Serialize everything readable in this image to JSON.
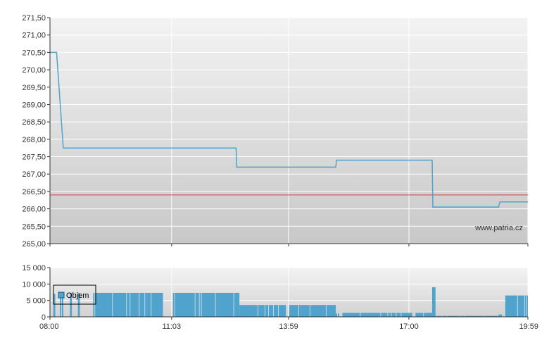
{
  "watermark": "www.patria.cz",
  "colors": {
    "price_line": "#4fa3cc",
    "reference_line": "#cc4444",
    "volume_bar": "#4fa3cc",
    "grid": "#ffffff",
    "axis": "#333333"
  },
  "chart_data": [
    {
      "type": "line",
      "title": "",
      "xlabel": "",
      "ylabel": "",
      "x_unit": "time",
      "xlim": [
        "08:00",
        "19:59"
      ],
      "ylim": [
        265.0,
        271.5
      ],
      "y_ticks": [
        "271,50",
        "271,00",
        "270,50",
        "270,00",
        "269,50",
        "269,00",
        "268,50",
        "268,00",
        "267,50",
        "267,00",
        "266,50",
        "266,00",
        "265,50",
        "265,00"
      ],
      "y_tick_values": [
        271.5,
        271.0,
        270.5,
        270.0,
        269.5,
        269.0,
        268.5,
        268.0,
        267.5,
        267.0,
        266.5,
        266.0,
        265.5,
        265.0
      ],
      "x_ticks": [
        "08:00",
        "11:03",
        "13:59",
        "17:00",
        "19:59"
      ],
      "grid": true,
      "reference_line": {
        "value": 266.4
      },
      "series": [
        {
          "points": [
            [
              "08:00",
              270.5
            ],
            [
              "08:10",
              270.5
            ],
            [
              "08:20",
              267.75
            ],
            [
              "12:40",
              267.75
            ],
            [
              "12:41",
              267.2
            ],
            [
              "15:10",
              267.2
            ],
            [
              "15:11",
              267.4
            ],
            [
              "17:35",
              267.4
            ],
            [
              "17:36",
              266.05
            ],
            [
              "19:15",
              266.05
            ],
            [
              "19:17",
              266.2
            ],
            [
              "19:59",
              266.2
            ]
          ]
        }
      ]
    },
    {
      "type": "bar",
      "title": "",
      "xlabel": "",
      "ylabel": "",
      "x_unit": "time",
      "xlim": [
        "08:00",
        "19:59"
      ],
      "ylim": [
        0,
        15000
      ],
      "y_ticks": [
        "15 000",
        "10 000",
        "5 000",
        "0"
      ],
      "y_tick_values": [
        15000,
        10000,
        5000,
        0
      ],
      "x_ticks": [
        "08:00",
        "11:03",
        "13:59",
        "17:00",
        "19:59"
      ],
      "grid": true,
      "legend": {
        "position": "top-left",
        "entries": [
          "Objem"
        ]
      },
      "series": [
        {
          "name": "Objem",
          "segments": [
            {
              "from": "08:05",
              "to": "08:08",
              "value": 7000
            },
            {
              "from": "08:15",
              "to": "08:20",
              "value": 7300
            },
            {
              "from": "08:30",
              "to": "08:33",
              "value": 7300
            },
            {
              "from": "08:42",
              "to": "08:45",
              "value": 7300
            },
            {
              "from": "09:05",
              "to": "10:50",
              "value": 7300
            },
            {
              "from": "11:05",
              "to": "12:45",
              "value": 7300
            },
            {
              "from": "12:45",
              "to": "13:55",
              "value": 3600
            },
            {
              "from": "14:00",
              "to": "15:10",
              "value": 3600
            },
            {
              "from": "15:10",
              "to": "15:15",
              "value": 1000
            },
            {
              "from": "15:20",
              "to": "17:05",
              "value": 1200
            },
            {
              "from": "17:10",
              "to": "17:35",
              "value": 1200
            },
            {
              "from": "17:35",
              "to": "17:40",
              "value": 9000
            },
            {
              "from": "17:40",
              "to": "19:15",
              "value": 300
            },
            {
              "from": "19:15",
              "to": "19:20",
              "value": 700
            },
            {
              "from": "19:25",
              "to": "19:59",
              "value": 6500
            }
          ]
        }
      ]
    }
  ]
}
